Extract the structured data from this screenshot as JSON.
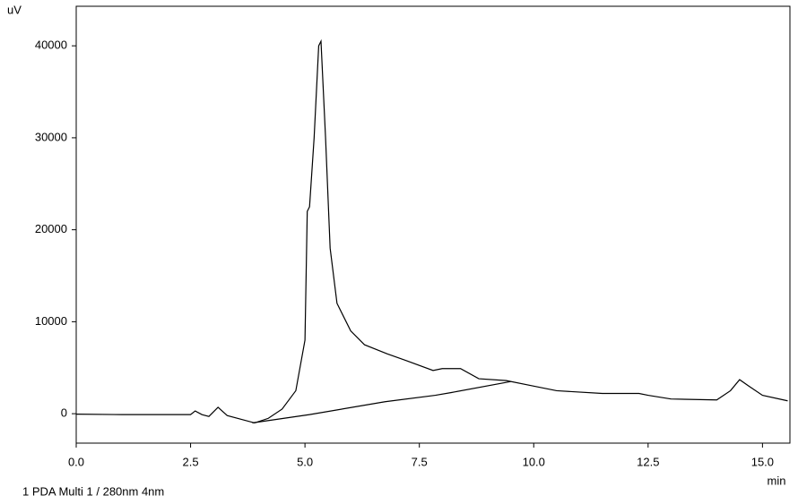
{
  "chart_data": {
    "type": "line",
    "y_unit": "uV",
    "x_unit": "min",
    "footer": "1   PDA Multi 1 / 280nm 4nm",
    "xlim": [
      0,
      15.6
    ],
    "ylim": [
      -3200,
      44300
    ],
    "xticks": [
      {
        "value": 0,
        "label": "0.0"
      },
      2.5,
      {
        "value": 5,
        "label": "5.0"
      },
      7.5,
      {
        "value": 10,
        "label": "10.0"
      },
      12.5,
      {
        "value": 15,
        "label": "15.0"
      }
    ],
    "yticks": [
      0,
      10000,
      20000,
      30000,
      40000
    ],
    "series": [
      {
        "color": "#000000",
        "x": [
          0,
          1.0,
          2.0,
          2.5,
          2.6,
          2.75,
          2.9,
          3.1,
          3.3,
          3.6,
          3.9,
          4.2,
          4.5,
          4.8,
          5.0,
          5.05,
          5.1,
          5.2,
          5.3,
          5.35,
          5.45,
          5.55,
          5.7,
          6.0,
          6.3,
          6.8,
          7.2,
          7.8,
          8.0,
          8.4,
          8.8,
          9.4,
          10.0,
          10.5,
          11.5,
          12.3,
          12.5,
          13.0,
          14.0,
          14.3,
          14.5,
          14.7,
          15.0,
          15.55
        ],
        "values": [
          -50,
          -100,
          -100,
          -100,
          300,
          -100,
          -300,
          700,
          -200,
          -600,
          -1000,
          -500,
          500,
          2500,
          8000,
          22000,
          22500,
          30000,
          40000,
          40500,
          30000,
          18000,
          12000,
          9000,
          7500,
          6500,
          5800,
          4700,
          4900,
          4900,
          3800,
          3600,
          3000,
          2500,
          2200,
          2200,
          2000,
          1600,
          1500,
          2500,
          3700,
          3000,
          2000,
          1400
        ]
      },
      {
        "color": "#000000",
        "x": [
          3.85,
          5.1,
          6.75,
          7.85,
          8.2,
          9.5
        ],
        "values": [
          -1000,
          -100,
          1300,
          2000,
          2300,
          3500
        ]
      }
    ]
  }
}
